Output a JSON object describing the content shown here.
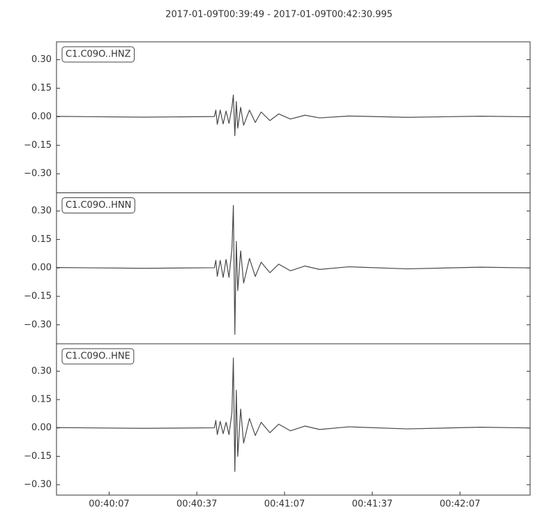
{
  "title": "2017-01-09T00:39:49  -  2017-01-09T00:42:30.995",
  "chart_data": [
    {
      "type": "line",
      "label": "C1.C09O..HNZ",
      "color": "#484848",
      "xlim": [
        0,
        161.995
      ],
      "ylim": [
        -0.4,
        0.394
      ],
      "yticks": [
        {
          "value": 0.3,
          "label": "0.30"
        },
        {
          "value": 0.15,
          "label": "0.15"
        },
        {
          "value": 0,
          "label": "0.00"
        },
        {
          "value": -0.15,
          "label": "−0.15"
        },
        {
          "value": -0.3,
          "label": "−0.30"
        }
      ],
      "x": [
        0,
        30,
        54,
        54.5,
        55,
        56,
        57,
        58,
        59,
        60,
        60.5,
        61,
        61.5,
        62,
        63,
        64,
        66,
        68,
        70,
        73,
        76,
        80,
        85,
        90,
        100,
        120,
        145,
        161.995
      ],
      "values": [
        0.002,
        -0.002,
        0.001,
        0.035,
        -0.04,
        0.035,
        -0.038,
        0.03,
        -0.035,
        0.05,
        0.115,
        -0.1,
        0.08,
        -0.06,
        0.05,
        -0.045,
        0.035,
        -0.03,
        0.025,
        -0.02,
        0.015,
        -0.012,
        0.008,
        -0.006,
        0.004,
        -0.003,
        0.003,
        0
      ]
    },
    {
      "type": "line",
      "label": "C1.C09O..HNN",
      "color": "#484848",
      "xlim": [
        0,
        161.995
      ],
      "ylim": [
        -0.4,
        0.396
      ],
      "yticks": [
        {
          "value": 0.3,
          "label": "0.30"
        },
        {
          "value": 0.15,
          "label": "0.15"
        },
        {
          "value": 0,
          "label": "0.00"
        },
        {
          "value": -0.15,
          "label": "−0.15"
        },
        {
          "value": -0.3,
          "label": "−0.30"
        }
      ],
      "x": [
        0,
        30,
        54,
        54.5,
        55,
        56,
        57,
        58,
        59,
        60,
        60.5,
        61,
        61.5,
        62,
        63,
        64,
        66,
        68,
        70,
        73,
        76,
        80,
        85,
        90,
        100,
        120,
        145,
        161.995
      ],
      "values": [
        0.002,
        -0.002,
        0.001,
        0.04,
        -0.045,
        0.04,
        -0.05,
        0.045,
        -0.05,
        0.1,
        0.33,
        -0.35,
        0.14,
        -0.12,
        0.09,
        -0.08,
        0.05,
        -0.045,
        0.03,
        -0.025,
        0.02,
        -0.015,
        0.01,
        -0.008,
        0.006,
        -0.005,
        0.004,
        0
      ]
    },
    {
      "type": "line",
      "label": "C1.C09O..HNE",
      "color": "#484848",
      "xlim": [
        0,
        161.995
      ],
      "ylim": [
        -0.355,
        0.445
      ],
      "yticks": [
        {
          "value": 0.3,
          "label": "0.30"
        },
        {
          "value": 0.15,
          "label": "0.15"
        },
        {
          "value": 0,
          "label": "0.00"
        },
        {
          "value": -0.15,
          "label": "−0.15"
        },
        {
          "value": -0.3,
          "label": "−0.30"
        }
      ],
      "xticks": [
        {
          "value": 18,
          "label": "00:40:07"
        },
        {
          "value": 48,
          "label": "00:40:37"
        },
        {
          "value": 78,
          "label": "00:41:07"
        },
        {
          "value": 108,
          "label": "00:41:37"
        },
        {
          "value": 138,
          "label": "00:42:07"
        }
      ],
      "x": [
        0,
        30,
        54,
        54.5,
        55,
        56,
        57,
        58,
        59,
        60,
        60.5,
        61,
        61.5,
        62,
        63,
        64,
        66,
        68,
        70,
        73,
        76,
        80,
        85,
        90,
        100,
        120,
        145,
        161.995
      ],
      "values": [
        0.002,
        -0.002,
        0.001,
        0.04,
        -0.035,
        0.035,
        -0.03,
        0.03,
        -0.035,
        0.08,
        0.37,
        -0.23,
        0.2,
        -0.15,
        0.1,
        -0.08,
        0.05,
        -0.04,
        0.03,
        -0.025,
        0.02,
        -0.015,
        0.01,
        -0.008,
        0.006,
        -0.005,
        0.004,
        0
      ]
    }
  ]
}
